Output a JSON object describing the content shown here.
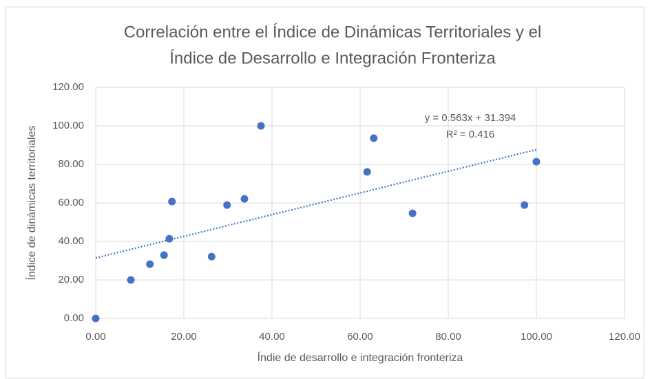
{
  "chart_data": {
    "type": "scatter",
    "title": [
      "Correlación entre el Índice de Dinámicas Territoriales y el",
      "Índice de Desarrollo e Integración Fronteriza"
    ],
    "x_label": "Índie de desarrollo e integración fronteriza",
    "y_label": "Índice de dinámicas territoriales",
    "series": [
      {
        "color": "#4472c4",
        "x": [
          0,
          7.97,
          12.3,
          15.5,
          16.7,
          17.3,
          26.3,
          29.8,
          33.75,
          37.5,
          61.6,
          63.1,
          71.9,
          97.3,
          100
        ],
        "values": [
          0,
          20,
          28.2,
          32.9,
          41.4,
          60.7,
          32.1,
          58.9,
          62.1,
          100,
          76.1,
          93.6,
          54.6,
          58.9,
          81.4
        ]
      }
    ],
    "trendline": {
      "slope": 0.563,
      "intercept": 31.394,
      "color": "#4472c4",
      "equation_label": "y = 0.563x + 31.394",
      "r2_label": "R² = 0.416"
    },
    "xlim": [
      0,
      120
    ],
    "ylim": [
      0,
      120
    ],
    "xticks": [
      {
        "value": 0,
        "label": "0.00"
      },
      {
        "value": 20,
        "label": "20.00"
      },
      {
        "value": 40,
        "label": "40.00"
      },
      {
        "value": 60,
        "label": "60.00"
      },
      {
        "value": 80,
        "label": "80.00"
      },
      {
        "value": 100,
        "label": "100.00"
      },
      {
        "value": 120,
        "label": "120.00"
      }
    ],
    "yticks": [
      {
        "value": 0,
        "label": "0.00"
      },
      {
        "value": 20,
        "label": "20.00"
      },
      {
        "value": 40,
        "label": "40.00"
      },
      {
        "value": 60,
        "label": "60.00"
      },
      {
        "value": 80,
        "label": "80.00"
      },
      {
        "value": 100,
        "label": "100.00"
      },
      {
        "value": 120,
        "label": "120.00"
      }
    ],
    "grid": true
  }
}
